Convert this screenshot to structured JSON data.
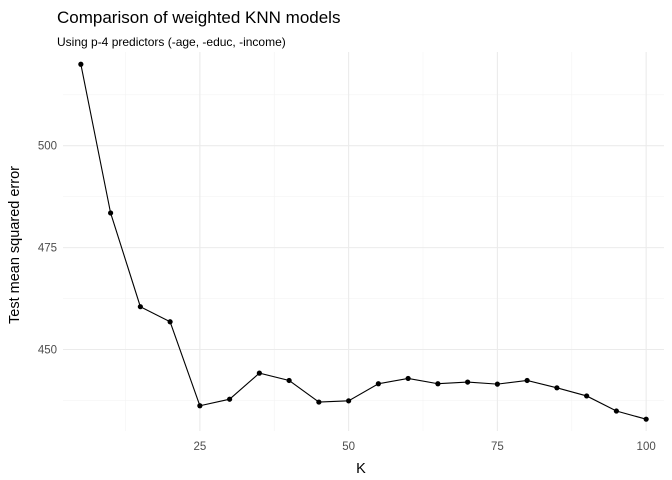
{
  "chart_data": {
    "type": "line",
    "title": "Comparison of weighted KNN models",
    "subtitle": "Using p-4 predictors (-age, -educ, -income)",
    "xlabel": "K",
    "ylabel": "Test mean squared error",
    "xlim": [
      2,
      103
    ],
    "ylim": [
      430,
      523
    ],
    "x_ticks": [
      25,
      50,
      75,
      100
    ],
    "y_ticks": [
      450,
      475,
      500
    ],
    "x_minor_ticks": [
      12.5,
      37.5,
      62.5,
      87.5
    ],
    "y_minor_ticks": [
      437.5,
      462.5,
      487.5,
      512.5
    ],
    "grid": true,
    "legend": "none",
    "series": [
      {
        "x": [
          5,
          10,
          15,
          20,
          25,
          30,
          35,
          40,
          45,
          50,
          55,
          60,
          65,
          70,
          75,
          80,
          85,
          90,
          95,
          100
        ],
        "y": [
          520.0,
          483.5,
          460.5,
          456.8,
          436.2,
          437.8,
          444.2,
          442.4,
          437.1,
          437.4,
          441.6,
          442.9,
          441.6,
          442.0,
          441.5,
          442.4,
          440.6,
          438.6,
          434.9,
          432.9
        ]
      }
    ]
  }
}
